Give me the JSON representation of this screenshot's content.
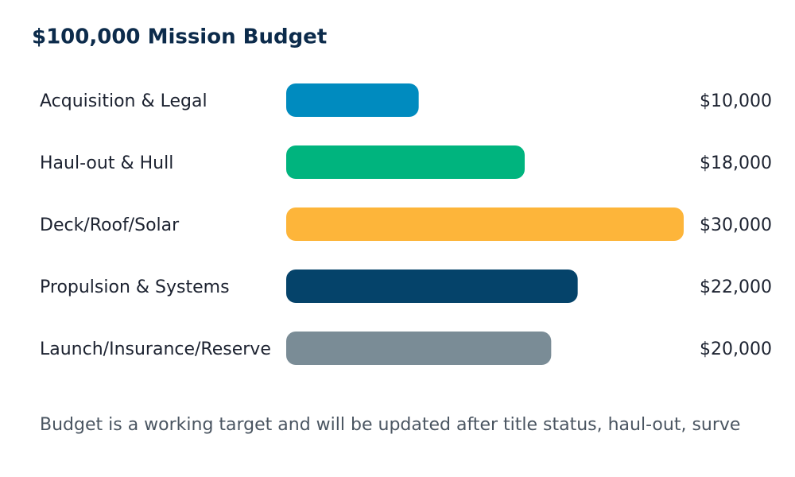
{
  "chart_data": {
    "type": "bar",
    "orientation": "horizontal",
    "title": "$100,000 Mission Budget",
    "categories": [
      "Acquisition & Legal",
      "Haul-out & Hull",
      "Deck/Roof/Solar",
      "Propulsion & Systems",
      "Launch/Insurance/Reserve"
    ],
    "values": [
      10000,
      18000,
      30000,
      22000,
      20000
    ],
    "value_labels": [
      "$10,000",
      "$18,000",
      "$30,000",
      "$22,000",
      "$20,000"
    ],
    "colors": [
      "#008bbf",
      "#00b47e",
      "#fdb53a",
      "#05436a",
      "#7a8c96"
    ],
    "footnote": "Budget is a working target and will be updated after title status, haul-out, surve"
  }
}
